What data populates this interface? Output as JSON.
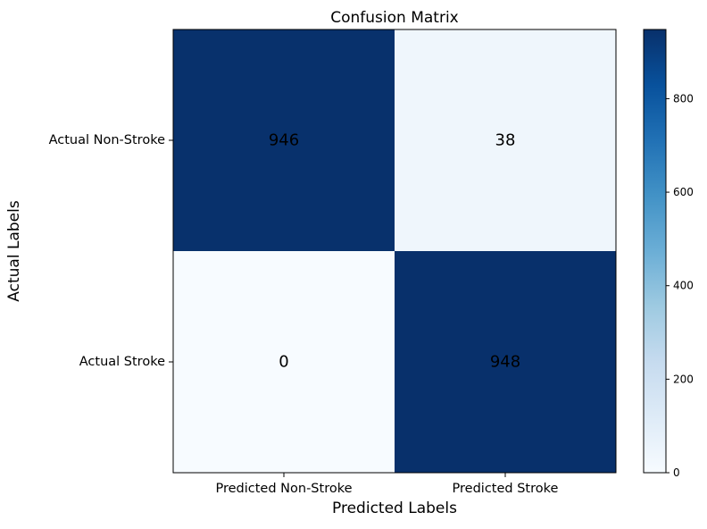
{
  "chart_data": {
    "type": "heatmap",
    "title": "Confusion Matrix",
    "xlabel": "Predicted Labels",
    "ylabel": "Actual Labels",
    "x_categories": [
      "Predicted Non-Stroke",
      "Predicted Stroke"
    ],
    "y_categories": [
      "Actual Non-Stroke",
      "Actual Stroke"
    ],
    "values": [
      [
        946,
        38
      ],
      [
        0,
        948
      ]
    ],
    "colormap": "Blues",
    "color_range": [
      0,
      948
    ],
    "colorbar": {
      "ticks": [
        0,
        200,
        400,
        600,
        800
      ]
    },
    "grid": false
  }
}
